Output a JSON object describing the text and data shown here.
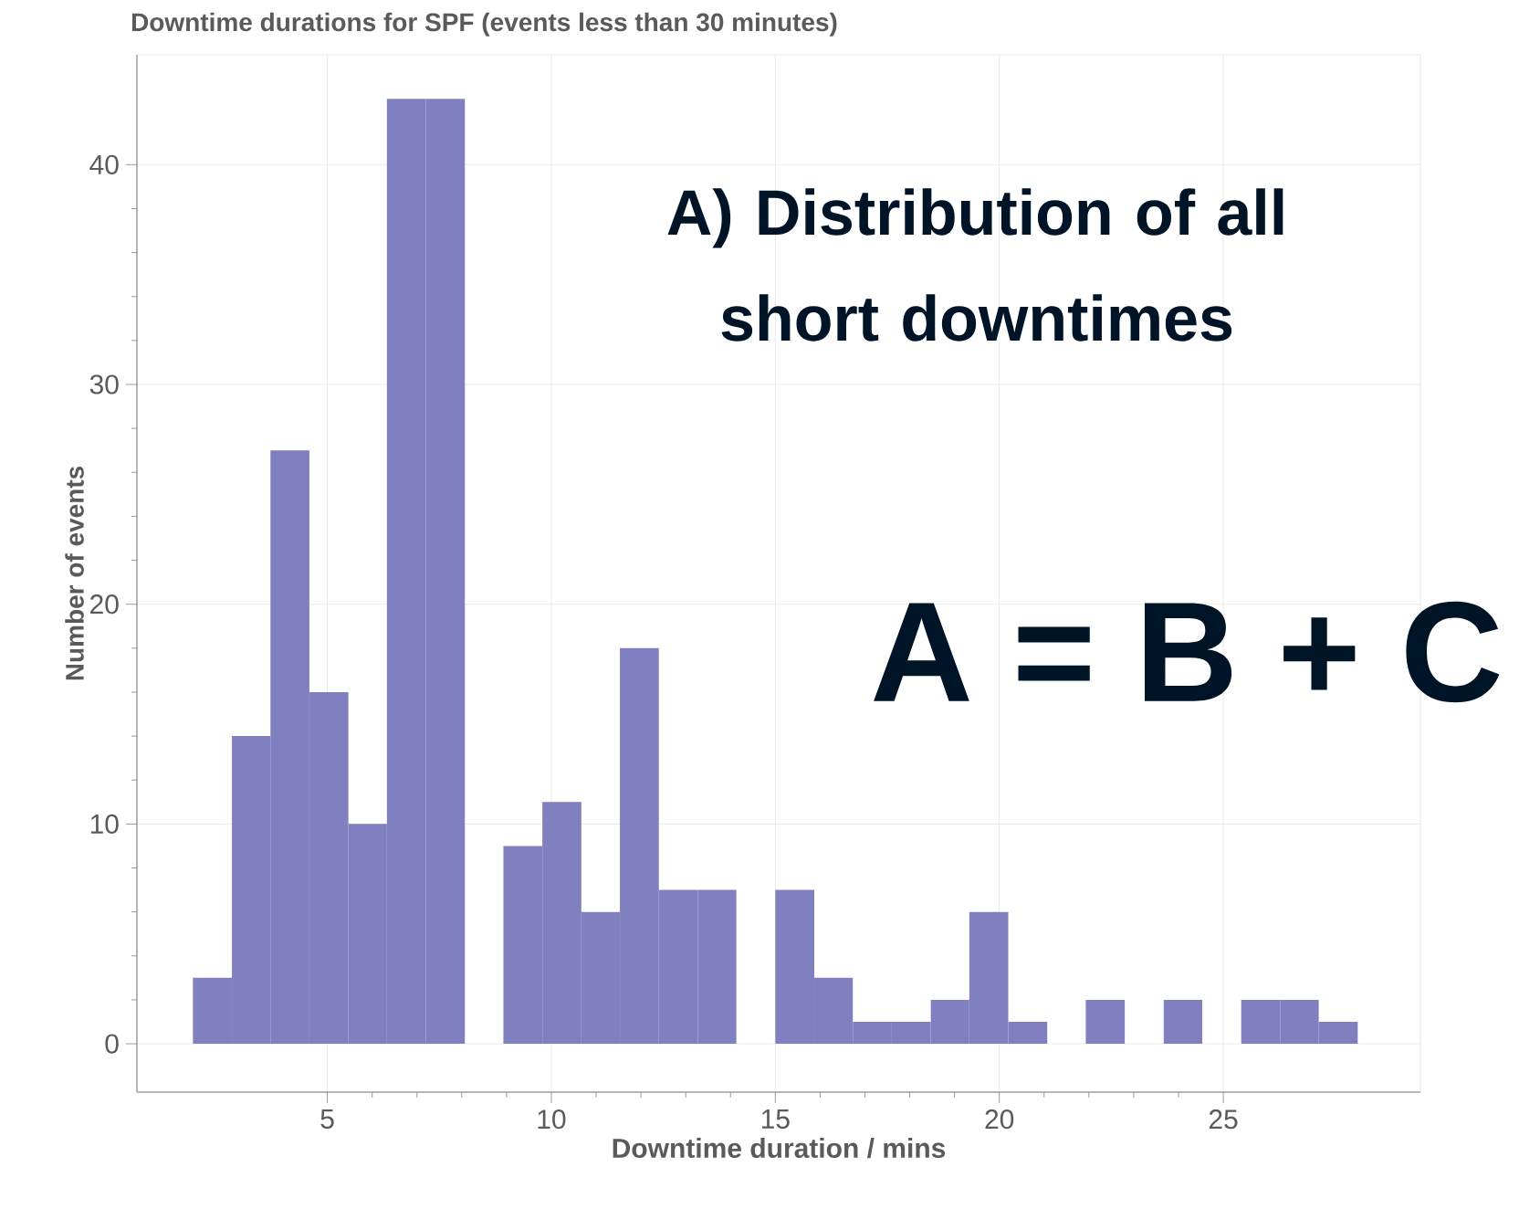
{
  "chart_data": {
    "type": "histogram",
    "title": "Downtime durations for SPF (events less than 30 minutes)",
    "xlabel": "Downtime duration / mins",
    "ylabel": "Number of events",
    "annotations": [
      "A) Distribution of all short downtimes",
      "A = B + C"
    ],
    "bins": [
      2,
      2.87,
      3.73,
      4.6,
      5.47,
      6.33,
      7.2,
      8.07,
      8.93,
      9.8,
      10.67,
      11.53,
      12.4,
      13.27,
      14.13,
      15,
      15.87,
      16.73,
      17.6,
      18.47,
      19.33,
      20.2,
      21.07,
      21.93,
      22.8,
      23.67,
      24.53,
      25.4,
      26.27,
      27.13,
      28
    ],
    "values": [
      3,
      14,
      27,
      16,
      10,
      43,
      43,
      0,
      9,
      11,
      6,
      18,
      7,
      7,
      0,
      7,
      3,
      1,
      1,
      2,
      6,
      1,
      0,
      2,
      0,
      2,
      0,
      2,
      2,
      1
    ],
    "color": "#8080c0",
    "xlim": [
      0.75,
      29.4
    ],
    "ylim": [
      -2.2,
      45
    ],
    "xticks": [
      5,
      10,
      15,
      20,
      25
    ],
    "yticks": [
      0,
      10,
      20,
      30,
      40
    ],
    "grid": true
  }
}
